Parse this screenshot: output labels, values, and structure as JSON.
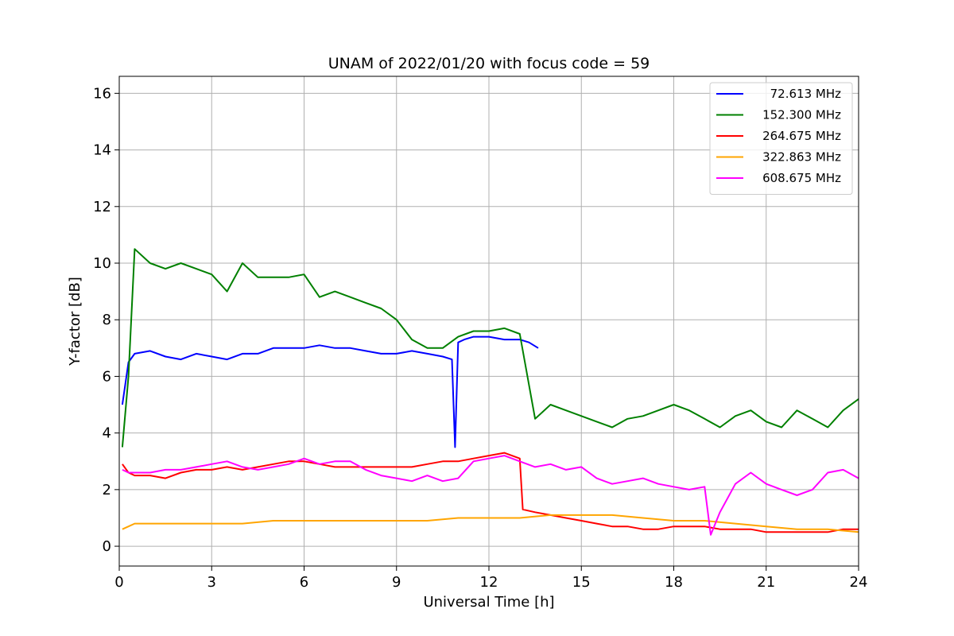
{
  "chart_data": {
    "type": "line",
    "title": "UNAM of 2022/01/20 with focus code = 59",
    "xlabel": "Universal Time [h]",
    "ylabel": "Y-factor [dB]",
    "xlim": [
      0,
      24
    ],
    "ylim": [
      -0.7,
      16.6
    ],
    "xticks": [
      0,
      3,
      6,
      9,
      12,
      15,
      18,
      21,
      24
    ],
    "yticks": [
      0,
      2,
      4,
      6,
      8,
      10,
      12,
      14,
      16
    ],
    "grid": true,
    "legend_position": "top-right",
    "series": [
      {
        "name": "72.613 MHz",
        "color": "#0000ff",
        "x": [
          0.1,
          0.3,
          0.5,
          1,
          1.5,
          2,
          2.5,
          3,
          3.5,
          4,
          4.5,
          5,
          5.5,
          6,
          6.5,
          7,
          7.5,
          8,
          8.5,
          9,
          9.5,
          10,
          10.5,
          10.8,
          10.9,
          11.0,
          11.2,
          11.5,
          12,
          12.5,
          13,
          13.3,
          13.6
        ],
        "y": [
          5.0,
          6.5,
          6.8,
          6.9,
          6.7,
          6.6,
          6.8,
          6.7,
          6.6,
          6.8,
          6.8,
          7.0,
          7.0,
          7.0,
          7.1,
          7.0,
          7.0,
          6.9,
          6.8,
          6.8,
          6.9,
          6.8,
          6.7,
          6.6,
          3.5,
          7.2,
          7.3,
          7.4,
          7.4,
          7.3,
          7.3,
          7.2,
          7.0
        ]
      },
      {
        "name": "152.300 MHz",
        "color": "#008000",
        "x": [
          0.1,
          0.3,
          0.5,
          1,
          1.5,
          2,
          2.5,
          3,
          3.5,
          4,
          4.5,
          5,
          5.5,
          6,
          6.5,
          7,
          7.5,
          8,
          8.5,
          9,
          9.5,
          10,
          10.5,
          11,
          11.5,
          12,
          12.5,
          13,
          13.5,
          14,
          14.5,
          15,
          15.5,
          16,
          16.5,
          17,
          17.5,
          18,
          18.5,
          19,
          19.5,
          20,
          20.5,
          21,
          21.5,
          22,
          22.5,
          23,
          23.5,
          24
        ],
        "y": [
          3.5,
          6.0,
          10.5,
          10.0,
          9.8,
          10.0,
          9.8,
          9.6,
          9.0,
          10.0,
          9.5,
          9.5,
          9.5,
          9.6,
          8.8,
          9.0,
          8.8,
          8.6,
          8.4,
          8.0,
          7.3,
          7.0,
          7.0,
          7.4,
          7.6,
          7.6,
          7.7,
          7.5,
          4.5,
          5.0,
          4.8,
          4.6,
          4.4,
          4.2,
          4.5,
          4.6,
          4.8,
          5.0,
          4.8,
          4.5,
          4.2,
          4.6,
          4.8,
          4.4,
          4.2,
          4.8,
          4.5,
          4.2,
          4.8,
          5.2
        ]
      },
      {
        "name": "264.675 MHz",
        "color": "#ff0000",
        "x": [
          0.1,
          0.3,
          0.5,
          1,
          1.5,
          2,
          2.5,
          3,
          3.5,
          4,
          4.5,
          5,
          5.5,
          6,
          6.5,
          7,
          7.5,
          8,
          8.5,
          9,
          9.5,
          10,
          10.5,
          11,
          11.5,
          12,
          12.5,
          13,
          13.1,
          13.5,
          14,
          14.5,
          15,
          15.5,
          16,
          16.5,
          17,
          17.5,
          18,
          18.5,
          19,
          19.5,
          20,
          20.5,
          21,
          21.5,
          22,
          22.5,
          23,
          23.5,
          24
        ],
        "y": [
          2.9,
          2.6,
          2.5,
          2.5,
          2.4,
          2.6,
          2.7,
          2.7,
          2.8,
          2.7,
          2.8,
          2.9,
          3.0,
          3.0,
          2.9,
          2.8,
          2.8,
          2.8,
          2.8,
          2.8,
          2.8,
          2.9,
          3.0,
          3.0,
          3.1,
          3.2,
          3.3,
          3.1,
          1.3,
          1.2,
          1.1,
          1.0,
          0.9,
          0.8,
          0.7,
          0.7,
          0.6,
          0.6,
          0.7,
          0.7,
          0.7,
          0.6,
          0.6,
          0.6,
          0.5,
          0.5,
          0.5,
          0.5,
          0.5,
          0.6,
          0.6
        ]
      },
      {
        "name": "322.863 MHz",
        "color": "#ffa500",
        "x": [
          0.1,
          0.3,
          0.5,
          1,
          2,
          3,
          4,
          5,
          6,
          7,
          8,
          9,
          10,
          11,
          12,
          13,
          14,
          15,
          16,
          17,
          18,
          19,
          20,
          21,
          22,
          23,
          24
        ],
        "y": [
          0.6,
          0.7,
          0.8,
          0.8,
          0.8,
          0.8,
          0.8,
          0.9,
          0.9,
          0.9,
          0.9,
          0.9,
          0.9,
          1.0,
          1.0,
          1.0,
          1.1,
          1.1,
          1.1,
          1.0,
          0.9,
          0.9,
          0.8,
          0.7,
          0.6,
          0.6,
          0.5
        ]
      },
      {
        "name": "608.675 MHz",
        "color": "#ff00ff",
        "x": [
          0.1,
          0.3,
          0.5,
          1,
          1.5,
          2,
          2.5,
          3,
          3.5,
          4,
          4.5,
          5,
          5.5,
          6,
          6.5,
          7,
          7.5,
          8,
          8.5,
          9,
          9.5,
          10,
          10.5,
          11,
          11.5,
          12,
          12.5,
          13,
          13.5,
          14,
          14.5,
          15,
          15.5,
          16,
          16.5,
          17,
          17.5,
          18,
          18.5,
          19,
          19.2,
          19.5,
          20,
          20.5,
          21,
          21.5,
          22,
          22.5,
          23,
          23.5,
          24
        ],
        "y": [
          2.7,
          2.6,
          2.6,
          2.6,
          2.7,
          2.7,
          2.8,
          2.9,
          3.0,
          2.8,
          2.7,
          2.8,
          2.9,
          3.1,
          2.9,
          3.0,
          3.0,
          2.7,
          2.5,
          2.4,
          2.3,
          2.5,
          2.3,
          2.4,
          3.0,
          3.1,
          3.2,
          3.0,
          2.8,
          2.9,
          2.7,
          2.8,
          2.4,
          2.2,
          2.3,
          2.4,
          2.2,
          2.1,
          2.0,
          2.1,
          0.4,
          1.2,
          2.2,
          2.6,
          2.2,
          2.0,
          1.8,
          2.0,
          2.6,
          2.7,
          2.4
        ]
      }
    ]
  }
}
